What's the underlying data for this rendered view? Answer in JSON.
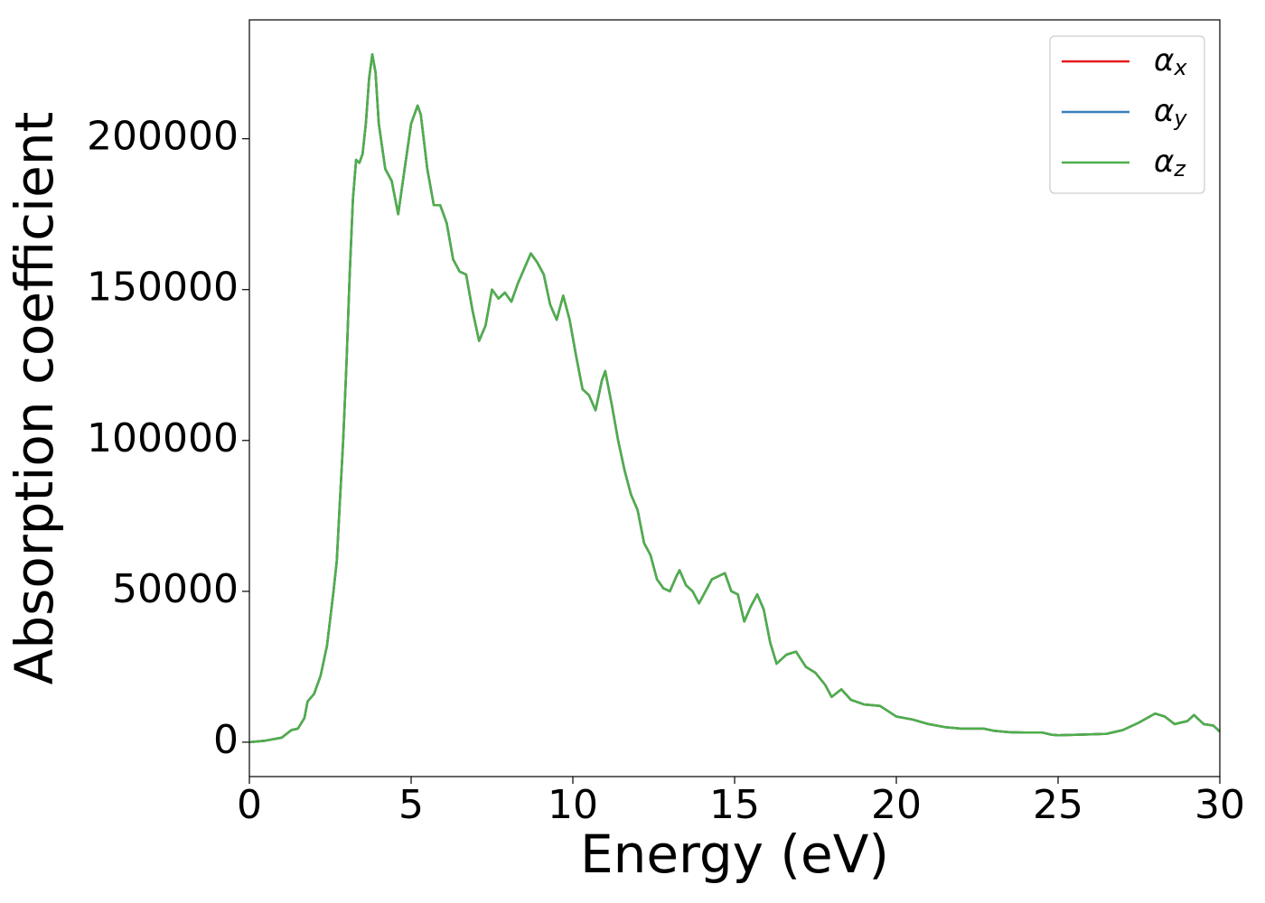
{
  "chart_data": {
    "type": "line",
    "xlabel": "Energy (eV)",
    "ylabel": "Absorption coefficient",
    "x": [
      0,
      0.5,
      1.0,
      1.3,
      1.5,
      1.7,
      1.8,
      2.0,
      2.2,
      2.4,
      2.6,
      2.7,
      2.8,
      2.9,
      3.0,
      3.1,
      3.2,
      3.3,
      3.4,
      3.5,
      3.6,
      3.7,
      3.8,
      3.9,
      4.0,
      4.2,
      4.4,
      4.6,
      4.8,
      5.0,
      5.2,
      5.3,
      5.5,
      5.7,
      5.9,
      6.1,
      6.3,
      6.5,
      6.7,
      6.9,
      7.1,
      7.3,
      7.5,
      7.7,
      7.9,
      8.1,
      8.3,
      8.5,
      8.7,
      8.9,
      9.1,
      9.3,
      9.5,
      9.7,
      9.9,
      10.1,
      10.3,
      10.5,
      10.7,
      10.9,
      11.0,
      11.2,
      11.4,
      11.6,
      11.8,
      12.0,
      12.2,
      12.4,
      12.6,
      12.8,
      13.0,
      13.2,
      13.3,
      13.5,
      13.7,
      13.9,
      14.1,
      14.3,
      14.5,
      14.7,
      14.9,
      15.1,
      15.3,
      15.5,
      15.7,
      15.9,
      16.1,
      16.3,
      16.6,
      16.9,
      17.2,
      17.5,
      17.8,
      18.0,
      18.3,
      18.6,
      19.0,
      19.5,
      20.0,
      20.5,
      21.0,
      21.5,
      22.0,
      22.7,
      23.0,
      23.5,
      24.0,
      24.5,
      24.8,
      25.0,
      26.0,
      26.5,
      27.0,
      27.5,
      28.0,
      28.3,
      28.6,
      29.0,
      29.2,
      29.5,
      29.8,
      30.0
    ],
    "series": [
      {
        "name": "αx",
        "color": "#e41a1c",
        "values": [
          0,
          500,
          1500,
          4000,
          4500,
          8000,
          13500,
          16000,
          22000,
          32000,
          50000,
          60000,
          80000,
          100000,
          125000,
          155000,
          180000,
          193000,
          192000,
          195000,
          205000,
          220000,
          228000,
          222000,
          205000,
          190000,
          186000,
          175000,
          190000,
          205000,
          211000,
          208000,
          190000,
          178000,
          178000,
          172000,
          160000,
          156000,
          155000,
          143000,
          133000,
          138000,
          150000,
          147000,
          149000,
          146000,
          152000,
          157000,
          162000,
          159000,
          155000,
          145000,
          140000,
          148000,
          140000,
          128000,
          117000,
          115000,
          110000,
          120000,
          123000,
          112000,
          100000,
          90000,
          82000,
          77000,
          66000,
          62000,
          54000,
          51000,
          50000,
          55000,
          57000,
          52000,
          50000,
          46000,
          50000,
          54000,
          55000,
          56000,
          50000,
          49000,
          40000,
          45000,
          49000,
          44000,
          33000,
          26000,
          29000,
          30000,
          25000,
          23000,
          19000,
          15000,
          17500,
          14000,
          12500,
          12000,
          8500,
          7500,
          6000,
          5000,
          4500,
          4500,
          3800,
          3300,
          3200,
          3200,
          2500,
          2300,
          2600,
          2800,
          4000,
          6500,
          9500,
          8500,
          6000,
          7000,
          9000,
          6000,
          5500,
          3500
        ]
      },
      {
        "name": "αy",
        "color": "#377eb8",
        "values": [
          0,
          500,
          1500,
          4000,
          4500,
          8000,
          13500,
          16000,
          22000,
          32000,
          50000,
          60000,
          80000,
          100000,
          125000,
          155000,
          180000,
          193000,
          192000,
          195000,
          205000,
          220000,
          228000,
          222000,
          205000,
          190000,
          186000,
          175000,
          190000,
          205000,
          211000,
          208000,
          190000,
          178000,
          178000,
          172000,
          160000,
          156000,
          155000,
          143000,
          133000,
          138000,
          150000,
          147000,
          149000,
          146000,
          152000,
          157000,
          162000,
          159000,
          155000,
          145000,
          140000,
          148000,
          140000,
          128000,
          117000,
          115000,
          110000,
          120000,
          123000,
          112000,
          100000,
          90000,
          82000,
          77000,
          66000,
          62000,
          54000,
          51000,
          50000,
          55000,
          57000,
          52000,
          50000,
          46000,
          50000,
          54000,
          55000,
          56000,
          50000,
          49000,
          40000,
          45000,
          49000,
          44000,
          33000,
          26000,
          29000,
          30000,
          25000,
          23000,
          19000,
          15000,
          17500,
          14000,
          12500,
          12000,
          8500,
          7500,
          6000,
          5000,
          4500,
          4500,
          3800,
          3300,
          3200,
          3200,
          2500,
          2300,
          2600,
          2800,
          4000,
          6500,
          9500,
          8500,
          6000,
          7000,
          9000,
          6000,
          5500,
          3500
        ]
      },
      {
        "name": "αz",
        "color": "#4daf4a",
        "values": [
          0,
          500,
          1500,
          4000,
          4500,
          8000,
          13500,
          16000,
          22000,
          32000,
          50000,
          60000,
          80000,
          100000,
          125000,
          155000,
          180000,
          193000,
          192000,
          195000,
          205000,
          220000,
          228000,
          222000,
          205000,
          190000,
          186000,
          175000,
          190000,
          205000,
          211000,
          208000,
          190000,
          178000,
          178000,
          172000,
          160000,
          156000,
          155000,
          143000,
          133000,
          138000,
          150000,
          147000,
          149000,
          146000,
          152000,
          157000,
          162000,
          159000,
          155000,
          145000,
          140000,
          148000,
          140000,
          128000,
          117000,
          115000,
          110000,
          120000,
          123000,
          112000,
          100000,
          90000,
          82000,
          77000,
          66000,
          62000,
          54000,
          51000,
          50000,
          55000,
          57000,
          52000,
          50000,
          46000,
          50000,
          54000,
          55000,
          56000,
          50000,
          49000,
          40000,
          45000,
          49000,
          44000,
          33000,
          26000,
          29000,
          30000,
          25000,
          23000,
          19000,
          15000,
          17500,
          14000,
          12500,
          12000,
          8500,
          7500,
          6000,
          5000,
          4500,
          4500,
          3800,
          3300,
          3200,
          3200,
          2500,
          2300,
          2600,
          2800,
          4000,
          6500,
          9500,
          8500,
          6000,
          7000,
          9000,
          6000,
          5500,
          3500
        ]
      }
    ],
    "xlim": [
      0,
      30
    ],
    "xticks": [
      0,
      5,
      10,
      15,
      20,
      25,
      30
    ],
    "ylim": [
      -11400,
      239400
    ],
    "yticks": [
      0,
      50000,
      100000,
      150000,
      200000
    ],
    "grid": false,
    "legend": "upper right"
  }
}
